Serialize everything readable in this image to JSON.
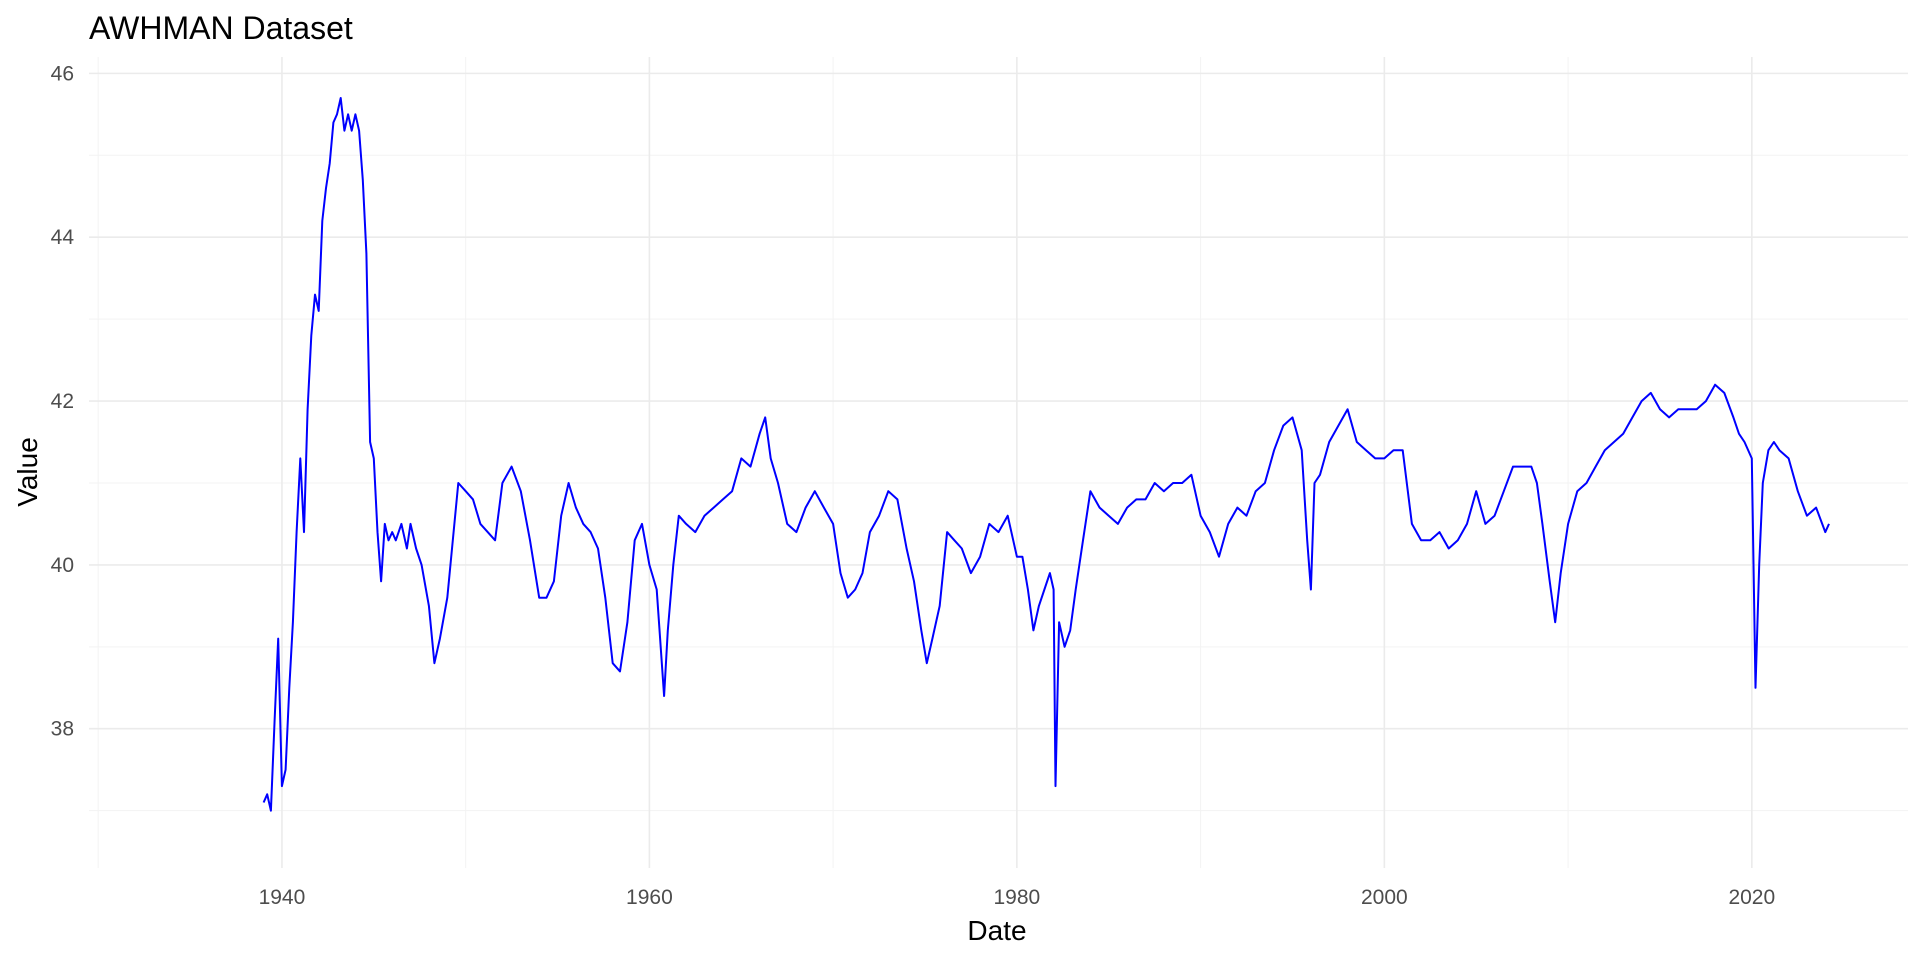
{
  "chart_data": {
    "type": "line",
    "title": "AWHMAN Dataset",
    "xlabel": "Date",
    "ylabel": "Value",
    "xlim": [
      1929.5,
      2028.5
    ],
    "ylim": [
      36.3,
      46.2
    ],
    "x_ticks": [
      1940,
      1960,
      1980,
      2000,
      2020
    ],
    "x_tick_labels": [
      "1940",
      "1960",
      "1980",
      "2000",
      "2020"
    ],
    "y_ticks": [
      38,
      40,
      42,
      44,
      46
    ],
    "y_tick_labels": [
      "38",
      "40",
      "42",
      "44",
      "46"
    ],
    "grid": true,
    "legend": "none",
    "colors": {
      "line": "#0000ff",
      "grid": "#ebebeb",
      "text": "#4d4d4d"
    },
    "series": [
      {
        "x": [
          1939.0,
          1939.2,
          1939.4,
          1939.6,
          1939.8,
          1940.0,
          1940.2,
          1940.4,
          1940.6,
          1940.8,
          1941.0,
          1941.2,
          1941.4,
          1941.6,
          1941.8,
          1942.0,
          1942.2,
          1942.4,
          1942.6,
          1942.8,
          1943.0,
          1943.2,
          1943.4,
          1943.6,
          1943.8,
          1944.0,
          1944.2,
          1944.4,
          1944.6,
          1944.8,
          1945.0,
          1945.2,
          1945.4,
          1945.6,
          1945.8,
          1946.0,
          1946.2,
          1946.5,
          1946.8,
          1947.0,
          1947.3,
          1947.6,
          1948.0,
          1948.3,
          1948.6,
          1949.0,
          1949.3,
          1949.6,
          1950.0,
          1950.4,
          1950.8,
          1951.2,
          1951.6,
          1952.0,
          1952.5,
          1953.0,
          1953.5,
          1954.0,
          1954.4,
          1954.8,
          1955.2,
          1955.6,
          1956.0,
          1956.4,
          1956.8,
          1957.2,
          1957.6,
          1958.0,
          1958.4,
          1958.8,
          1959.2,
          1959.6,
          1960.0,
          1960.4,
          1960.8,
          1961.0,
          1961.3,
          1961.6,
          1962.0,
          1962.5,
          1963.0,
          1963.5,
          1964.0,
          1964.5,
          1965.0,
          1965.5,
          1966.0,
          1966.3,
          1966.6,
          1967.0,
          1967.5,
          1968.0,
          1968.5,
          1969.0,
          1969.5,
          1970.0,
          1970.4,
          1970.8,
          1971.2,
          1971.6,
          1972.0,
          1972.5,
          1973.0,
          1973.5,
          1974.0,
          1974.4,
          1974.8,
          1975.1,
          1975.4,
          1975.8,
          1976.2,
          1976.6,
          1977.0,
          1977.5,
          1978.0,
          1978.5,
          1979.0,
          1979.5,
          1980.0,
          1980.3,
          1980.6,
          1980.9,
          1981.2,
          1981.5,
          1981.8,
          1982.0,
          1982.1,
          1982.3,
          1982.6,
          1982.9,
          1983.2,
          1983.6,
          1984.0,
          1984.5,
          1985.0,
          1985.5,
          1986.0,
          1986.5,
          1987.0,
          1987.5,
          1988.0,
          1988.5,
          1989.0,
          1989.5,
          1990.0,
          1990.5,
          1991.0,
          1991.5,
          1992.0,
          1992.5,
          1993.0,
          1993.5,
          1994.0,
          1994.5,
          1995.0,
          1995.5,
          1995.8,
          1996.0,
          1996.2,
          1996.5,
          1997.0,
          1997.5,
          1998.0,
          1998.5,
          1999.0,
          1999.5,
          2000.0,
          2000.5,
          2001.0,
          2001.5,
          2002.0,
          2002.5,
          2003.0,
          2003.5,
          2004.0,
          2004.5,
          2005.0,
          2005.5,
          2006.0,
          2006.5,
          2007.0,
          2007.5,
          2008.0,
          2008.3,
          2008.6,
          2009.0,
          2009.3,
          2009.6,
          2010.0,
          2010.5,
          2011.0,
          2011.5,
          2012.0,
          2012.5,
          2013.0,
          2013.5,
          2014.0,
          2014.5,
          2015.0,
          2015.5,
          2016.0,
          2016.5,
          2017.0,
          2017.5,
          2018.0,
          2018.5,
          2019.0,
          2019.3,
          2019.6,
          2020.0,
          2020.2,
          2020.4,
          2020.6,
          2020.9,
          2021.2,
          2021.5,
          2022.0,
          2022.5,
          2023.0,
          2023.5,
          2024.0,
          2024.2
        ],
        "y": [
          37.1,
          37.2,
          37.0,
          38.1,
          39.1,
          37.3,
          37.5,
          38.5,
          39.3,
          40.4,
          41.3,
          40.4,
          41.9,
          42.8,
          43.3,
          43.1,
          44.2,
          44.6,
          44.9,
          45.4,
          45.5,
          45.7,
          45.3,
          45.5,
          45.3,
          45.5,
          45.3,
          44.7,
          43.8,
          41.5,
          41.3,
          40.4,
          39.8,
          40.5,
          40.3,
          40.4,
          40.3,
          40.5,
          40.2,
          40.5,
          40.2,
          40.0,
          39.5,
          38.8,
          39.1,
          39.6,
          40.3,
          41.0,
          40.9,
          40.8,
          40.5,
          40.4,
          40.3,
          41.0,
          41.2,
          40.9,
          40.3,
          39.6,
          39.6,
          39.8,
          40.6,
          41.0,
          40.7,
          40.5,
          40.4,
          40.2,
          39.6,
          38.8,
          38.7,
          39.3,
          40.3,
          40.5,
          40.0,
          39.7,
          38.4,
          39.2,
          40.0,
          40.6,
          40.5,
          40.4,
          40.6,
          40.7,
          40.8,
          40.9,
          41.3,
          41.2,
          41.6,
          41.8,
          41.3,
          41.0,
          40.5,
          40.4,
          40.7,
          40.9,
          40.7,
          40.5,
          39.9,
          39.6,
          39.7,
          39.9,
          40.4,
          40.6,
          40.9,
          40.8,
          40.2,
          39.8,
          39.2,
          38.8,
          39.1,
          39.5,
          40.4,
          40.3,
          40.2,
          39.9,
          40.1,
          40.5,
          40.4,
          40.6,
          40.1,
          40.1,
          39.7,
          39.2,
          39.5,
          39.7,
          39.9,
          39.7,
          37.3,
          39.3,
          39.0,
          39.2,
          39.7,
          40.3,
          40.9,
          40.7,
          40.6,
          40.5,
          40.7,
          40.8,
          40.8,
          41.0,
          40.9,
          41.0,
          41.0,
          41.1,
          40.6,
          40.4,
          40.1,
          40.5,
          40.7,
          40.6,
          40.9,
          41.0,
          41.4,
          41.7,
          41.8,
          41.4,
          40.3,
          39.7,
          41.0,
          41.1,
          41.5,
          41.7,
          41.9,
          41.5,
          41.4,
          41.3,
          41.3,
          41.4,
          41.4,
          40.5,
          40.3,
          40.3,
          40.4,
          40.2,
          40.3,
          40.5,
          40.9,
          40.5,
          40.6,
          40.9,
          41.2,
          41.2,
          41.2,
          41.0,
          40.5,
          39.8,
          39.3,
          39.9,
          40.5,
          40.9,
          41.0,
          41.2,
          41.4,
          41.5,
          41.6,
          41.8,
          42.0,
          42.1,
          41.9,
          41.8,
          41.9,
          41.9,
          41.9,
          42.0,
          42.2,
          42.1,
          41.8,
          41.6,
          41.5,
          41.3,
          38.5,
          40.0,
          41.0,
          41.4,
          41.5,
          41.4,
          41.3,
          40.9,
          40.6,
          40.7,
          40.4,
          40.5
        ],
        "points_note": "estimated"
      }
    ]
  }
}
